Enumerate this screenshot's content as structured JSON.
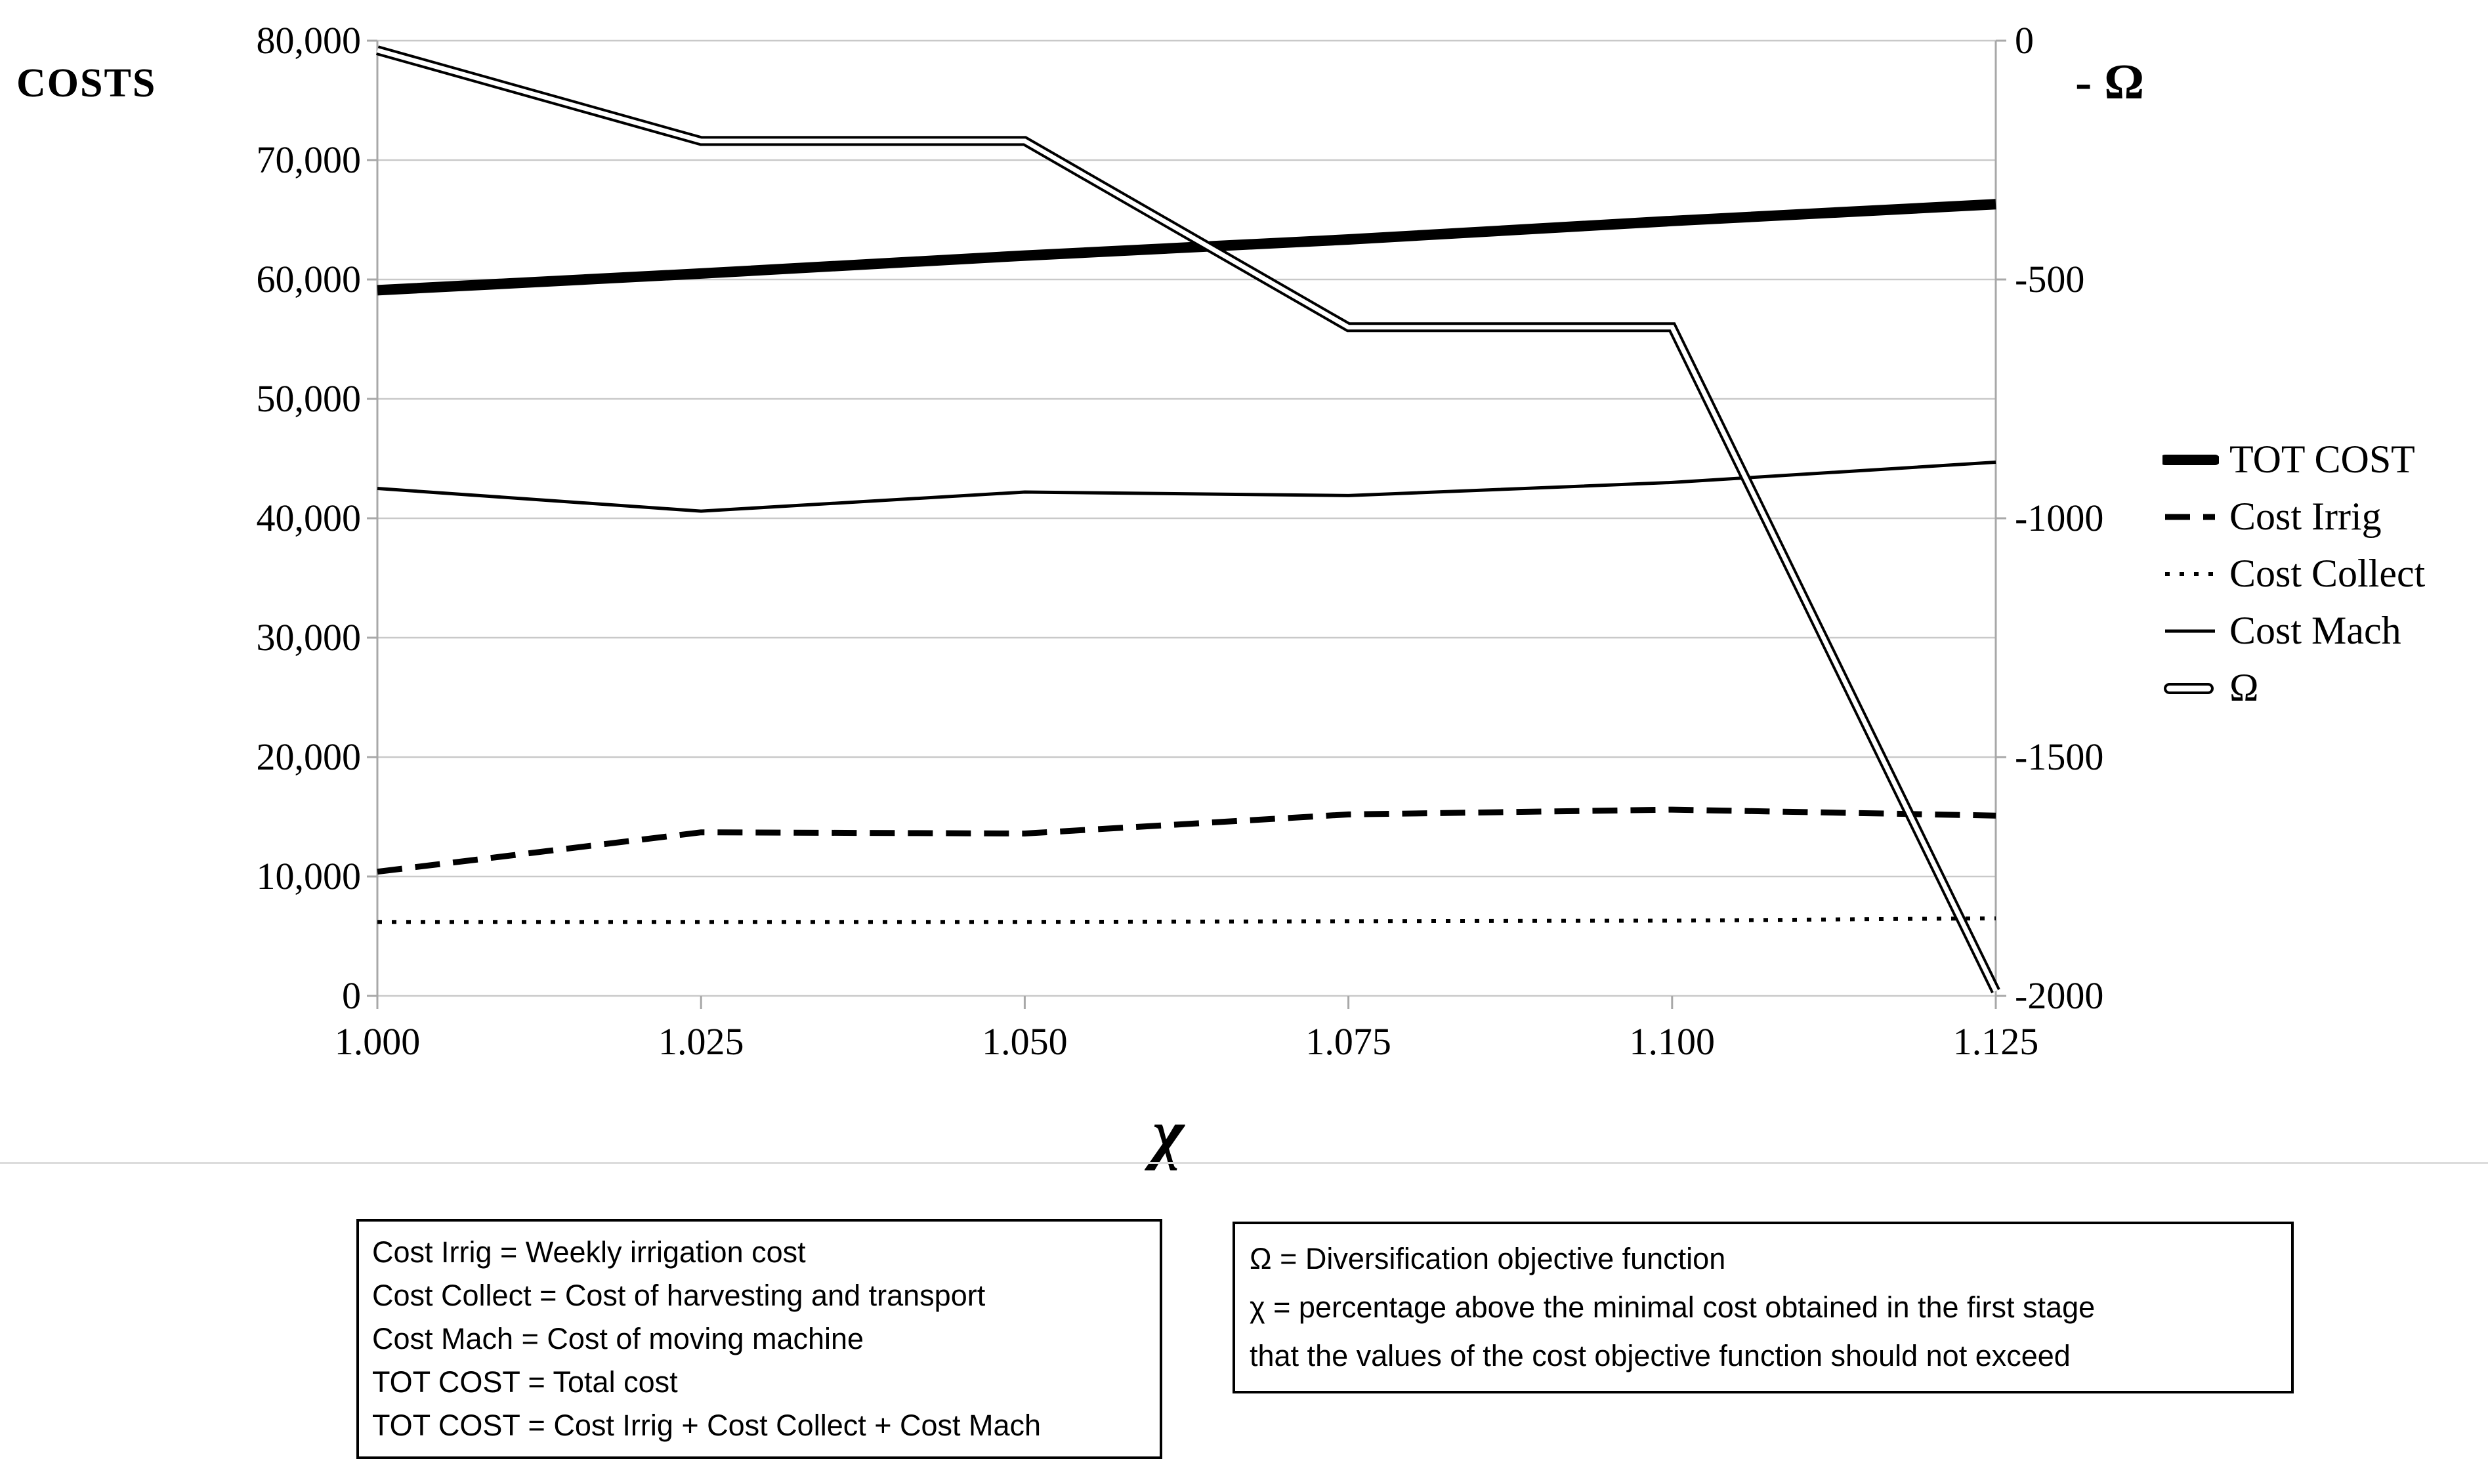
{
  "chart": {
    "left_axis_title": "COSTS",
    "right_axis_title": "- Ω",
    "x_axis_title": "χ",
    "left_axis_ticks": [
      "80,000",
      "70,000",
      "60,000",
      "50,000",
      "40,000",
      "30,000",
      "20,000",
      "10,000",
      "0"
    ],
    "right_axis_ticks": [
      "0",
      "-500",
      "-1000",
      "-1500",
      "-2000"
    ],
    "x_ticks": [
      "1.000",
      "1.025",
      "1.050",
      "1.075",
      "1.100",
      "1.125"
    ]
  },
  "legend": {
    "items": [
      {
        "label": "TOT COST",
        "style": "thick-solid"
      },
      {
        "label": "Cost Irrig",
        "style": "dashed"
      },
      {
        "label": "Cost Collect",
        "style": "dotted"
      },
      {
        "label": "Cost Mach",
        "style": "thin-solid"
      },
      {
        "label": "Ω",
        "style": "double"
      }
    ]
  },
  "chart_data": {
    "type": "line",
    "title": "",
    "x": [
      1.0,
      1.025,
      1.05,
      1.075,
      1.1,
      1.125
    ],
    "xlabel": "χ",
    "left_axis": {
      "label": "COSTS",
      "range": [
        0,
        80000
      ],
      "gridline_step": 10000
    },
    "right_axis": {
      "label": "- Ω",
      "range": [
        -2000,
        0
      ],
      "tick_step": 500
    },
    "grid": true,
    "legend_position": "right",
    "series": [
      {
        "name": "TOT COST",
        "axis": "left",
        "style": "thick-solid",
        "values": [
          59100,
          60500,
          62000,
          63350,
          64900,
          66300
        ]
      },
      {
        "name": "Cost Irrig",
        "axis": "left",
        "style": "dashed",
        "values": [
          10400,
          13700,
          13600,
          15200,
          15600,
          15100
        ]
      },
      {
        "name": "Cost Collect",
        "axis": "left",
        "style": "dotted",
        "values": [
          6200,
          6200,
          6200,
          6250,
          6300,
          6500
        ]
      },
      {
        "name": "Cost Mach",
        "axis": "left",
        "style": "thin-solid",
        "values": [
          42500,
          40600,
          42200,
          41900,
          43000,
          44700
        ]
      },
      {
        "name": "Ω",
        "axis": "right",
        "style": "double",
        "values": [
          -20,
          -210,
          -210,
          -600,
          -600,
          -1990
        ]
      }
    ]
  },
  "notes_left": {
    "lines": [
      "Cost Irrig = Weekly irrigation cost",
      "Cost Collect = Cost of harvesting and transport",
      "Cost Mach = Cost of moving machine",
      "TOT COST = Total cost",
      "TOT COST = Cost Irrig + Cost Collect + Cost Mach"
    ]
  },
  "notes_right": {
    "lines": [
      "Ω = Diversification objective function",
      "χ = percentage above the minimal cost obtained in the first stage",
      "that the values of the cost objective function should not exceed"
    ]
  },
  "colors": {
    "line": "#000000",
    "gridline": "#c9c9c9",
    "axis": "#a8a8a8",
    "divider": "#dcdcdc",
    "background": "#ffffff"
  }
}
